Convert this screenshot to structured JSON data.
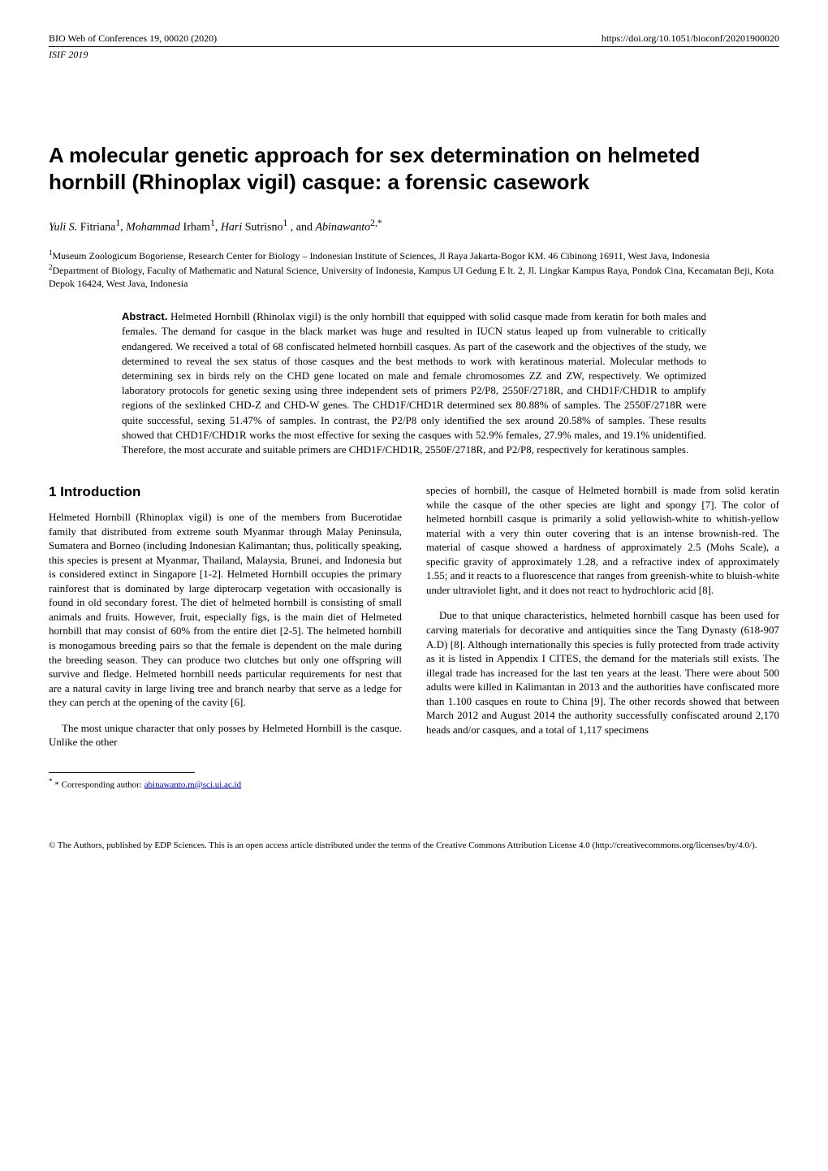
{
  "header": {
    "left": "BIO Web of Conferences 19, 00020 (2020)",
    "right": "https://doi.org/10.1051/bioconf/20201900020",
    "second": "ISIF 2019"
  },
  "title": "A molecular genetic approach for sex determination on helmeted hornbill (Rhinoplax vigil) casque: a forensic casework",
  "authors_html": "<span class='fn'>Yuli S.</span> Fitriana<sup>1</sup>, <span class='fn'>Mohammad</span>  Irham<sup>1</sup>, <span class='fn'>Hari</span> Sutrisno<sup>1</sup> , and <span class='fn'>Abinawanto</span><sup>2,*</sup>",
  "affiliations": {
    "a1": "Museum Zoologicum Bogoriense, Research Center for Biology – Indonesian Institute of Sciences, Jl Raya Jakarta-Bogor KM. 46 Cibinong 16911, West Java, Indonesia",
    "a2": "Department of Biology, Faculty of Mathematic and Natural Science, University of Indonesia, Kampus UI Gedung E lt. 2, Jl. Lingkar Kampus Raya, Pondok Cina, Kecamatan Beji, Kota Depok 16424, West Java, Indonesia"
  },
  "abstract": {
    "label": "Abstract.",
    "text": " Helmeted Hornbill (Rhinolax vigil) is the only hornbill that equipped with solid casque made from keratin for both males and females. The demand for casque in the black market was huge and resulted in IUCN status leaped up from vulnerable to critically endangered. We received a total of 68 confiscated helmeted hornbill casques. As part of the casework and the objectives of the study, we determined to reveal the sex status of those casques and the best methods to work with keratinous material. Molecular methods to determining sex in birds rely on the CHD gene located on male and female chromosomes ZZ and ZW, respectively. We optimized laboratory protocols for genetic sexing using three independent sets of primers P2/P8, 2550F/2718R, and CHD1F/CHD1R to amplify regions of the sexlinked CHD-Z and CHD-W genes. The CHD1F/CHD1R determined sex 80.88% of samples. The 2550F/2718R were quite successful, sexing 51.47% of samples. In contrast, the P2/P8 only identified the sex around 20.58% of samples. These results showed that CHD1F/CHD1R works the most effective for sexing the casques with 52.9% females, 27.9% males, and 19.1% unidentified. Therefore, the most accurate and suitable primers are CHD1F/CHD1R, 2550F/2718R, and P2/P8, respectively for keratinous samples."
  },
  "section1_heading": "1 Introduction",
  "body": {
    "left_p1": "Helmeted Hornbill (Rhinoplax vigil) is one of the members from Bucerotidae family that distributed from extreme south Myanmar through Malay Peninsula, Sumatera and Borneo (including Indonesian Kalimantan; thus, politically speaking, this species is present at Myanmar, Thailand, Malaysia, Brunei, and Indonesia but is considered extinct in Singapore [1-2]. Helmeted Hornbill occupies the primary rainforest that is dominated by large dipterocarp vegetation with occasionally is found in old secondary forest. The diet of helmeted hornbill is consisting of small animals and fruits. However, fruit, especially figs, is the main diet of Helmeted hornbill that may consist of 60% from the entire diet [2-5]. The helmeted hornbill is monogamous breeding pairs so that the female is dependent on the male during the breeding season. They can produce two clutches but only one offspring will survive and fledge. Helmeted hornbill needs particular requirements for nest that are a natural cavity in large living tree and branch nearby that serve as a ledge for they can perch at the opening of the cavity [6].",
    "left_p2": "The most unique character that only posses by Helmeted Hornbill is the casque. Unlike the other",
    "right_p1": "species of hornbill, the casque of Helmeted hornbill is made from solid keratin while the casque of the other species are light and spongy [7]. The color of helmeted hornbill casque is primarily a solid yellowish-white to whitish-yellow material with a very thin outer covering that is an intense brownish-red. The material of casque showed a hardness of approximately 2.5 (Mohs Scale), a specific gravity of approximately 1.28, and a refractive index of approximately 1.55; and it reacts to a fluorescence that ranges from greenish-white to bluish-white under ultraviolet light, and it does not react to hydrochloric acid [8].",
    "right_p2": "Due to that unique characteristics, helmeted hornbill casque has been used for carving materials for decorative and antiquities since the Tang Dynasty (618-907 A.D) [8]. Although internationally this species is fully protected from trade activity as it is listed in Appendix I CITES, the demand for the materials still exists. The illegal trade has increased for the last ten years at the least. There were about 500 adults were killed in Kalimantan in 2013 and the authorities have confiscated more than 1.100 casques en route to China [9]. The other records showed that between March 2012 and August 2014 the authority successfully confiscated around 2,170 heads and/or casques, and a total of 1,117 specimens"
  },
  "footnote": {
    "label": "* Corresponding author: ",
    "email": "abinawanto.m@sci.ui.ac.id"
  },
  "footer": "© The Authors, published by EDP Sciences. This is an open access article distributed under the terms of the Creative Commons Attribution License 4.0 (http://creativecommons.org/licenses/by/4.0/)."
}
